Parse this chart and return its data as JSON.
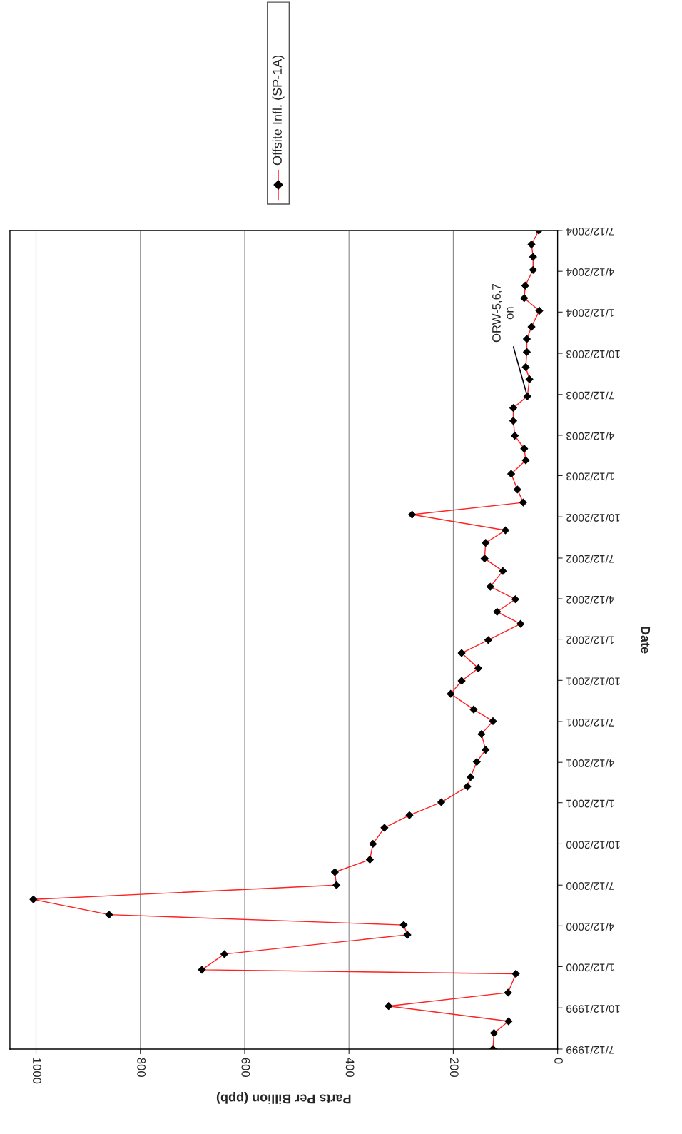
{
  "chart_data": {
    "type": "line",
    "orientation": "horizontal",
    "xlabel": "Parts Per Billion (ppb)",
    "ylabel": "Date",
    "x": [
      "1999-07-12",
      "1999-08-17",
      "1999-09-12",
      "1999-10-16",
      "1999-11-15",
      "1999-12-27",
      "2000-01-05",
      "2000-02-09",
      "2000-03-23",
      "2000-04-14",
      "2000-05-07",
      "2000-06-10",
      "2000-07-12",
      "2000-08-10",
      "2000-09-07",
      "2000-10-12",
      "2000-11-17",
      "2000-12-15",
      "2001-01-13",
      "2001-02-17",
      "2001-03-10",
      "2001-04-13",
      "2001-05-10",
      "2001-06-14",
      "2001-07-13",
      "2001-08-08",
      "2001-09-12",
      "2001-10-11",
      "2001-11-08",
      "2001-12-12",
      "2002-01-10",
      "2002-02-15",
      "2002-03-14",
      "2002-04-11",
      "2002-05-09",
      "2002-06-13",
      "2002-07-11",
      "2002-08-15",
      "2002-09-12",
      "2002-10-17",
      "2002-11-13",
      "2002-12-12",
      "2003-01-16",
      "2003-02-15",
      "2003-03-13",
      "2003-04-11",
      "2003-05-14",
      "2003-06-12",
      "2003-07-08",
      "2003-08-15",
      "2003-09-11",
      "2003-10-15",
      "2003-11-13",
      "2003-12-10",
      "2004-01-15",
      "2004-02-12",
      "2004-03-11",
      "2004-04-15",
      "2004-05-14",
      "2004-06-11",
      "2004-07-12"
    ],
    "series": [
      {
        "name": "Offsite Infl. (SP-1A)",
        "color": "#ff2020",
        "values": [
          124,
          122,
          94,
          324,
          95,
          80,
          682,
          639,
          288,
          295,
          860,
          1005,
          424,
          427,
          360,
          354,
          332,
          284,
          223,
          173,
          167,
          155,
          138,
          146,
          124,
          161,
          205,
          184,
          152,
          184,
          133,
          71,
          116,
          81,
          129,
          105,
          140,
          138,
          100,
          279,
          66,
          77,
          89,
          61,
          64,
          82,
          85,
          85,
          58,
          54,
          61,
          59,
          59,
          50,
          35,
          64,
          62,
          47,
          47,
          50,
          36
        ]
      }
    ],
    "xlim": [
      1050,
      0
    ],
    "xticks": [
      0,
      200,
      400,
      600,
      800,
      1000
    ],
    "ylim": [
      "1999-07-12",
      "2004-07-12"
    ],
    "yticks": [
      {
        "value": "1999-07-12",
        "label": "7/12/1999"
      },
      {
        "value": "1999-10-12",
        "label": "10/12/1999"
      },
      {
        "value": "2000-01-12",
        "label": "1/12/2000"
      },
      {
        "value": "2000-04-12",
        "label": "4/12/2000"
      },
      {
        "value": "2000-07-12",
        "label": "7/12/2000"
      },
      {
        "value": "2000-10-12",
        "label": "10/12/2000"
      },
      {
        "value": "2001-01-12",
        "label": "1/12/2001"
      },
      {
        "value": "2001-04-12",
        "label": "4/12/2001"
      },
      {
        "value": "2001-07-12",
        "label": "7/12/2001"
      },
      {
        "value": "2001-10-12",
        "label": "10/12/2001"
      },
      {
        "value": "2002-01-12",
        "label": "1/12/2002"
      },
      {
        "value": "2002-04-12",
        "label": "4/12/2002"
      },
      {
        "value": "2002-07-12",
        "label": "7/12/2002"
      },
      {
        "value": "2002-10-12",
        "label": "10/12/2002"
      },
      {
        "value": "2003-01-12",
        "label": "1/12/2003"
      },
      {
        "value": "2003-04-12",
        "label": "4/12/2003"
      },
      {
        "value": "2003-07-12",
        "label": "7/12/2003"
      },
      {
        "value": "2003-10-12",
        "label": "10/12/2003"
      },
      {
        "value": "2004-01-12",
        "label": "1/12/2004"
      },
      {
        "value": "2004-04-12",
        "label": "4/12/2004"
      },
      {
        "value": "2004-07-12",
        "label": "7/12/2004"
      }
    ],
    "annotations": [
      {
        "text": "ORW-5,6,7\non",
        "x": 58,
        "y": "2003-07-08"
      }
    ],
    "grid": "x",
    "legend": "top",
    "marker": "diamond",
    "line_style": "solid"
  }
}
